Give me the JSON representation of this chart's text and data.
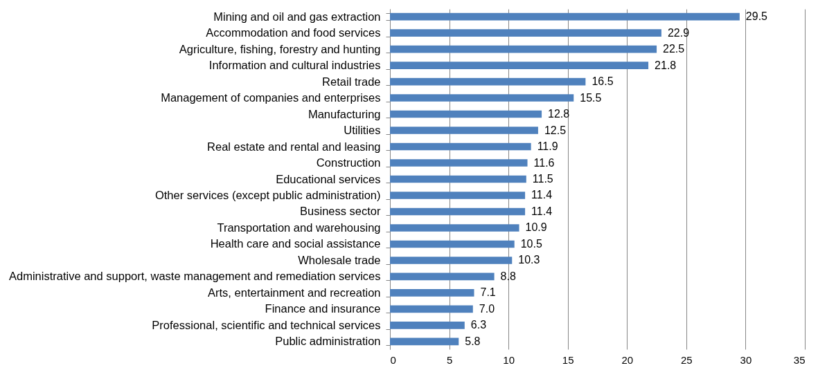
{
  "chart_data": {
    "type": "bar",
    "orientation": "horizontal",
    "categories": [
      "Mining and oil and gas extraction",
      "Accommodation and food services",
      "Agriculture, fishing, forestry and hunting",
      "Information and cultural industries",
      "Retail trade",
      "Management of companies and enterprises",
      "Manufacturing",
      "Utilities",
      "Real estate and rental and leasing",
      "Construction",
      "Educational services",
      "Other services (except public administration)",
      "Business sector",
      "Transportation and warehousing",
      "Health care and social assistance",
      "Wholesale trade",
      "Administrative and support, waste management and remediation services",
      "Arts, entertainment and recreation",
      "Finance and insurance",
      "Professional, scientific and technical services",
      "Public administration"
    ],
    "values": [
      29.5,
      22.9,
      22.5,
      21.8,
      16.5,
      15.5,
      12.8,
      12.5,
      11.9,
      11.6,
      11.5,
      11.4,
      11.4,
      10.9,
      10.5,
      10.3,
      8.8,
      7.1,
      7.0,
      6.3,
      5.8
    ],
    "value_labels": [
      "29.5",
      "22.9",
      "22.5",
      "21.8",
      "16.5",
      "15.5",
      "12.8",
      "12.5",
      "11.9",
      "11.6",
      "11.5",
      "11.4",
      "11.4",
      "10.9",
      "10.5",
      "10.3",
      "8.8",
      "7.1",
      "7.0",
      "6.3",
      "5.8"
    ],
    "color": "#4f81bd",
    "xlim": [
      0,
      35
    ],
    "xticks": [
      0,
      5,
      10,
      15,
      20,
      25,
      30,
      35
    ],
    "grid": "x"
  }
}
